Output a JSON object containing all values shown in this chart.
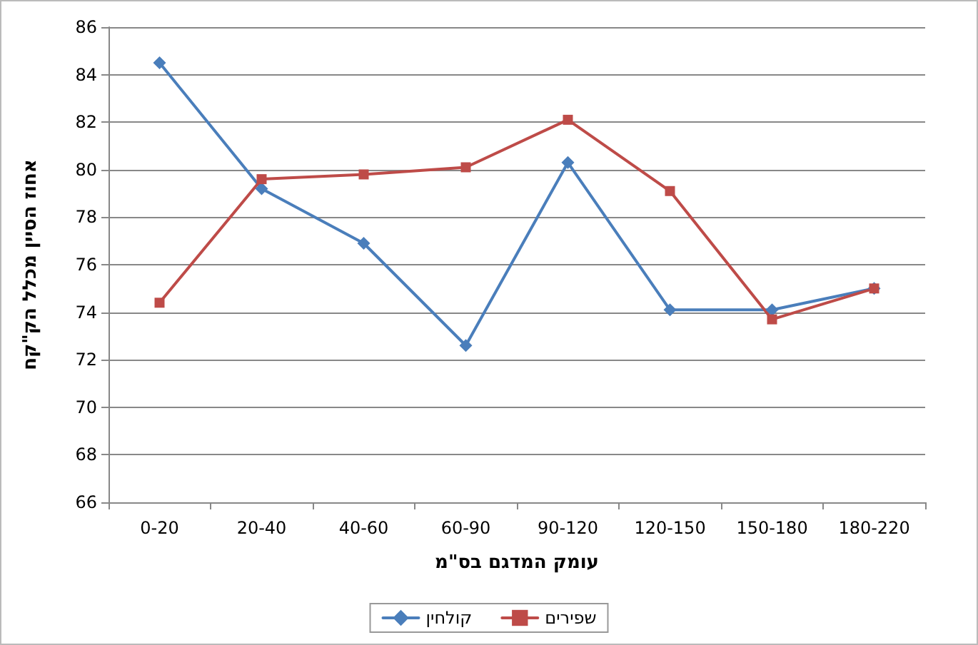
{
  "chart_data": {
    "type": "line",
    "xlabel": "עומק המדגם בס\"מ",
    "ylabel": "אחוז הסיין מכלל הק\"קח",
    "categories": [
      "0-20",
      "20-40",
      "40-60",
      "60-90",
      "90-120",
      "120-150",
      "150-180",
      "180-220"
    ],
    "series": [
      {
        "name": "קולחין",
        "color": "#4a7ebb",
        "marker": "diamond",
        "values": [
          84.5,
          79.2,
          76.9,
          72.6,
          80.3,
          74.1,
          74.1,
          75.0
        ]
      },
      {
        "name": "שפירים",
        "color": "#be4b48",
        "marker": "square",
        "values": [
          74.4,
          79.6,
          79.8,
          80.1,
          82.1,
          79.1,
          73.7,
          75.0
        ]
      }
    ],
    "ylim": [
      66,
      86
    ],
    "yticks": [
      66,
      68,
      70,
      72,
      74,
      76,
      78,
      80,
      82,
      84,
      86
    ],
    "grid": "y",
    "legend": "bottom",
    "line_style": "solid"
  }
}
